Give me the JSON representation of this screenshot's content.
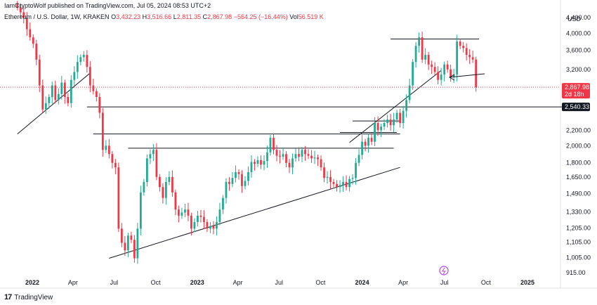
{
  "publisher": "IamCryptoWolf published on TradingView.com, Jul 05, 2024 08:53 UTC+2",
  "legend": {
    "symbol": "Ethereum / U.S. Dollar, 1W, KRAKEN",
    "o_label": "O",
    "o": "3,432.23",
    "h_label": "H",
    "h": "3,516.66",
    "l_label": "L",
    "l": "2,811.35",
    "c_label": "C",
    "c": "2,867.98",
    "change": "−564.25 (−16.44%)",
    "vol_label": "Vol",
    "vol": "56.519 K"
  },
  "footer": {
    "brand": "TradingView",
    "mark": "17"
  },
  "colors": {
    "up": "#22ab94",
    "down": "#f23645",
    "line": "#131722",
    "price_line": "#f23645"
  },
  "chart_data": {
    "type": "candlestick",
    "scale": "log",
    "currency_label": "USD",
    "y_ticks": [
      915,
      1005,
      1105,
      1205,
      1330,
      1490,
      1650,
      1800,
      2000,
      2200,
      2540.33,
      2867.98,
      3200,
      3600,
      4000,
      4400
    ],
    "y_tick_labels": [
      "915.00",
      "1,005.00",
      "1,105.00",
      "1,205.00",
      "1,330.00",
      "1,490.00",
      "1,650.00",
      "1,800.00",
      "2,000.00",
      "2,200.00",
      "",
      "",
      "3,200.00",
      "3,600.00",
      "4,000.00",
      "4,400.00"
    ],
    "x_labels": [
      {
        "label": "2022",
        "date": "2022-01-01"
      },
      {
        "label": "Apr",
        "date": "2022-04-01"
      },
      {
        "label": "Jul",
        "date": "2022-07-01"
      },
      {
        "label": "Oct",
        "date": "2022-10-01"
      },
      {
        "label": "2023",
        "date": "2023-01-01"
      },
      {
        "label": "Apr",
        "date": "2023-04-01"
      },
      {
        "label": "Jul",
        "date": "2023-07-01"
      },
      {
        "label": "Oct",
        "date": "2023-10-01"
      },
      {
        "label": "2024",
        "date": "2024-01-01"
      },
      {
        "label": "Apr",
        "date": "2024-04-01"
      },
      {
        "label": "Jul",
        "date": "2024-07-01"
      },
      {
        "label": "Oct",
        "date": "2024-10-01"
      },
      {
        "label": "2025",
        "date": "2025-01-01"
      }
    ],
    "last_price": {
      "value": 2867.98,
      "label": "2,867.98",
      "countdown": "2d 18h"
    },
    "level_tag": {
      "value": 2540.33,
      "label": "2,540.33"
    },
    "closes": [
      4700,
      4550,
      4400,
      4100,
      3900,
      3750,
      3400,
      2900,
      2500,
      2600,
      2700,
      2900,
      2650,
      2750,
      2950,
      2700,
      2600,
      3000,
      3150,
      3350,
      3450,
      3500,
      3250,
      2900,
      2800,
      2700,
      2450,
      1950,
      2000,
      1900,
      1800,
      1750,
      1200,
      1100,
      1050,
      1150,
      1120,
      1000,
      1200,
      1500,
      1600,
      1850,
      1900,
      1950,
      1650,
      1550,
      1450,
      1600,
      1650,
      1500,
      1350,
      1300,
      1325,
      1350,
      1300,
      1200,
      1250,
      1300,
      1290,
      1250,
      1200,
      1220,
      1200,
      1250,
      1350,
      1450,
      1600,
      1580,
      1640,
      1700,
      1680,
      1560,
      1610,
      1700,
      1810,
      1790,
      1830,
      1780,
      1820,
      1920,
      2100,
      1950,
      1880,
      1870,
      1900,
      1800,
      1750,
      1850,
      1900,
      1870,
      1950,
      1900,
      1880,
      1850,
      1860,
      1840,
      1750,
      1640,
      1650,
      1600,
      1580,
      1550,
      1570,
      1600,
      1550,
      1630,
      1640,
      1800,
      1890,
      2050,
      2000,
      2100,
      2050,
      2300,
      2200,
      2250,
      2300,
      2350,
      2270,
      2350,
      2450,
      2300,
      2480,
      2650,
      2900,
      3350,
      3700,
      3900,
      3400,
      3500,
      3300,
      3250,
      3150,
      3000,
      3100,
      3300,
      3200,
      3050,
      3100,
      3800,
      3700,
      3650,
      3500,
      3450,
      3400,
      2867.98
    ],
    "start_date": "2021-11-29",
    "trendlines": [
      {
        "from": [
          "2021-11-29",
          2150
        ],
        "to": [
          "2022-05-09",
          3130
        ]
      },
      {
        "from": [
          "2022-06-20",
          1000
        ],
        "to": [
          "2024-03-25",
          1750
        ]
      },
      {
        "from": [
          "2023-12-04",
          2040
        ],
        "to": [
          "2024-06-24",
          3180
        ]
      },
      {
        "from": [
          "2022-05-02",
          2540.33
        ],
        "to": [
          "2025-03-31",
          2540.33
        ]
      },
      {
        "from": [
          "2022-05-16",
          2150
        ],
        "to": [
          "2024-03-25",
          2150
        ]
      },
      {
        "from": [
          "2022-08-01",
          1970
        ],
        "to": [
          "2024-03-11",
          1970
        ]
      },
      {
        "from": [
          "2023-11-13",
          2170
        ],
        "to": [
          "2024-03-18",
          2170
        ]
      },
      {
        "from": [
          "2023-12-11",
          2330
        ],
        "to": [
          "2024-03-25",
          2330
        ]
      },
      {
        "from": [
          "2024-03-04",
          3860
        ],
        "to": [
          "2024-09-16",
          3860
        ]
      }
    ]
  }
}
